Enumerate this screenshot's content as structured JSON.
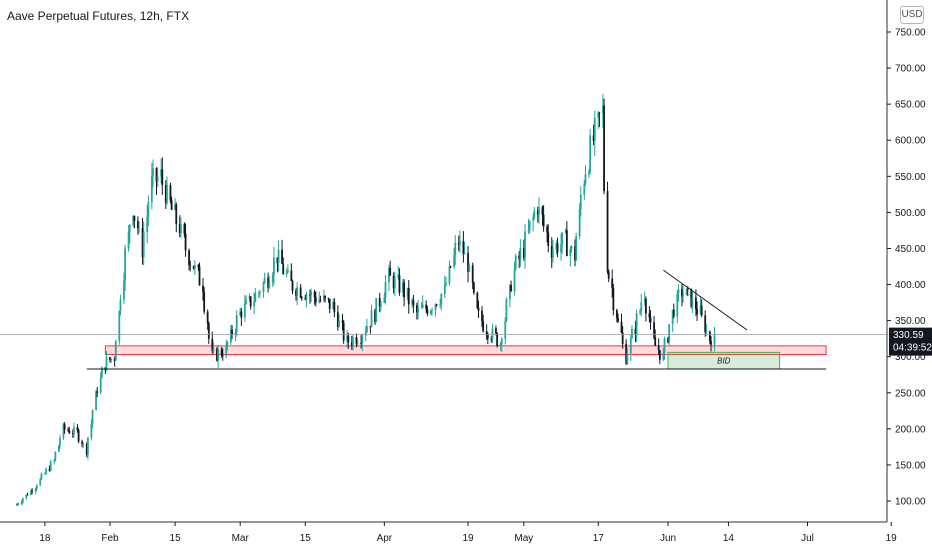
{
  "header": {
    "title": "Aave Perpetual Futures, 12h, FTX",
    "unit": "USD"
  },
  "price_tag": {
    "price": "330.59",
    "countdown": "04:39:52"
  },
  "colors": {
    "bull": "#26a69a",
    "bear": "#131722",
    "zone": "#f23645",
    "bid": "#4caf50",
    "line": "#131722",
    "axis": "#131722"
  },
  "chart_data": {
    "type": "candlestick",
    "title": "Aave Perpetual Futures, 12h, FTX",
    "y_unit": "USD",
    "ylim": [
      75,
      780
    ],
    "y_ticks": [
      100,
      150,
      200,
      250,
      300,
      350,
      400,
      450,
      500,
      550,
      600,
      650,
      700,
      750
    ],
    "y_tick_labels": [
      "100.00",
      "150.00",
      "200.00",
      "250.00",
      "300.00",
      "350.00",
      "400.00",
      "450.00",
      "500.00",
      "550.00",
      "600.00",
      "650.00",
      "700.00",
      "750.00"
    ],
    "x_ticks": [
      "18",
      "Feb",
      "15",
      "Mar",
      "15",
      "Apr",
      "19",
      "May",
      "17",
      "Jun",
      "14",
      "Jul",
      "19"
    ],
    "current_price": 330.59,
    "price_path": [
      [
        "2021-01-12",
        95
      ],
      [
        "2021-01-16",
        120
      ],
      [
        "2021-01-20",
        155
      ],
      [
        "2021-01-22",
        200
      ],
      [
        "2021-01-25",
        195
      ],
      [
        "2021-01-27",
        170
      ],
      [
        "2021-01-29",
        245
      ],
      [
        "2021-01-31",
        290
      ],
      [
        "2021-02-02",
        300
      ],
      [
        "2021-02-04",
        420
      ],
      [
        "2021-02-06",
        510
      ],
      [
        "2021-02-08",
        450
      ],
      [
        "2021-02-10",
        540
      ],
      [
        "2021-02-12",
        550
      ],
      [
        "2021-02-14",
        510
      ],
      [
        "2021-02-16",
        480
      ],
      [
        "2021-02-18",
        440
      ],
      [
        "2021-02-21",
        400
      ],
      [
        "2021-02-23",
        300
      ],
      [
        "2021-02-26",
        310
      ],
      [
        "2021-03-01",
        360
      ],
      [
        "2021-03-04",
        380
      ],
      [
        "2021-03-07",
        410
      ],
      [
        "2021-03-09",
        440
      ],
      [
        "2021-03-12",
        400
      ],
      [
        "2021-03-15",
        390
      ],
      [
        "2021-03-18",
        380
      ],
      [
        "2021-03-21",
        370
      ],
      [
        "2021-03-24",
        320
      ],
      [
        "2021-03-27",
        330
      ],
      [
        "2021-03-30",
        360
      ],
      [
        "2021-04-02",
        410
      ],
      [
        "2021-04-05",
        395
      ],
      [
        "2021-04-08",
        360
      ],
      [
        "2021-04-11",
        370
      ],
      [
        "2021-04-14",
        390
      ],
      [
        "2021-04-17",
        460
      ],
      [
        "2021-04-19",
        430
      ],
      [
        "2021-04-21",
        360
      ],
      [
        "2021-04-23",
        340
      ],
      [
        "2021-04-26",
        320
      ],
      [
        "2021-04-29",
        420
      ],
      [
        "2021-05-01",
        450
      ],
      [
        "2021-05-04",
        510
      ],
      [
        "2021-05-07",
        450
      ],
      [
        "2021-05-10",
        460
      ],
      [
        "2021-05-12",
        440
      ],
      [
        "2021-05-14",
        550
      ],
      [
        "2021-05-16",
        600
      ],
      [
        "2021-05-18",
        640
      ],
      [
        "2021-05-19",
        430
      ],
      [
        "2021-05-21",
        360
      ],
      [
        "2021-05-23",
        300
      ],
      [
        "2021-05-25",
        340
      ],
      [
        "2021-05-27",
        390
      ],
      [
        "2021-05-29",
        320
      ],
      [
        "2021-05-31",
        300
      ],
      [
        "2021-06-02",
        360
      ],
      [
        "2021-06-04",
        390
      ],
      [
        "2021-06-06",
        380
      ],
      [
        "2021-06-08",
        360
      ],
      [
        "2021-06-10",
        325
      ],
      [
        "2021-06-11",
        330.59
      ]
    ],
    "annotations": {
      "resistance_zone": {
        "y_low": 303,
        "y_high": 315,
        "x_from": "2021-01-31",
        "x_to": "2021-07-05"
      },
      "support_line": {
        "y": 283,
        "x_from": "2021-01-27",
        "x_to": "2021-07-05"
      },
      "bid_zone": {
        "label": "BID",
        "y_low": 283,
        "y_high": 306,
        "x_from": "2021-06-01",
        "x_to": "2021-06-25"
      },
      "trendline": {
        "from": [
          "2021-05-31",
          420
        ],
        "to": [
          "2021-06-18",
          337
        ]
      }
    }
  }
}
